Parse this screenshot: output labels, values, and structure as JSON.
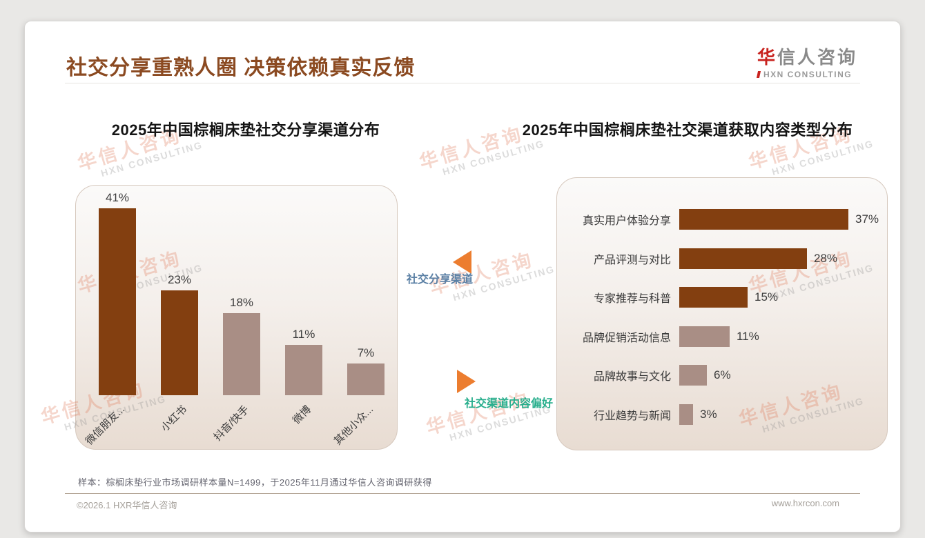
{
  "header": {
    "title": "社交分享重熟人圈 决策依赖真实反馈",
    "logo": {
      "brand_red": "华",
      "brand_rest": "信人咨询",
      "subtitle": "HXN CONSULTING"
    }
  },
  "watermark": {
    "line1": "华信人咨询",
    "line2": "HXN CONSULTING"
  },
  "annotations": {
    "left_chart_label": "社交分享渠道",
    "right_chart_label": "社交渠道内容偏好",
    "arrow_color": "#EC7D2F",
    "left_label_color": "#5B80A5",
    "right_label_color": "#27AE8C"
  },
  "colors": {
    "title_brown": "#8B4A21",
    "dark_bar": "#833F10",
    "light_bar": "#A98E85",
    "logo_red": "#C8221E"
  },
  "footnote": "样本：棕榈床垫行业市场调研样本量N=1499，于2025年11月通过华信人咨询调研获得",
  "footer": {
    "copyright": "©2026.1 HXR华信人咨询",
    "website": "www.hxrcon.com"
  },
  "chart_data": [
    {
      "type": "bar",
      "orientation": "vertical",
      "title": "2025年中国棕榈床垫社交分享渠道分布",
      "categories": [
        "微信朋友...",
        "小红书",
        "抖音/快手",
        "微博",
        "其他小众..."
      ],
      "values": [
        41,
        23,
        18,
        11,
        7
      ],
      "value_labels": [
        "41%",
        "23%",
        "18%",
        "11%",
        "7%"
      ],
      "unit": "%",
      "bar_colors": [
        "#833F10",
        "#833F10",
        "#A98E85",
        "#A98E85",
        "#A98E85"
      ],
      "ylim": [
        0,
        45
      ],
      "grid": false,
      "legend": "none"
    },
    {
      "type": "bar",
      "orientation": "horizontal",
      "title": "2025年中国棕榈床垫社交渠道获取内容类型分布",
      "categories": [
        "真实用户体验分享",
        "产品评测与对比",
        "专家推荐与科普",
        "品牌促销活动信息",
        "品牌故事与文化",
        "行业趋势与新闻"
      ],
      "values": [
        37,
        28,
        15,
        11,
        6,
        3
      ],
      "value_labels": [
        "37%",
        "28%",
        "15%",
        "11%",
        "6%",
        "3%"
      ],
      "unit": "%",
      "bar_colors": [
        "#833F10",
        "#833F10",
        "#833F10",
        "#A98E85",
        "#A98E85",
        "#A98E85"
      ],
      "xlim": [
        0,
        40
      ],
      "grid": false,
      "legend": "none"
    }
  ]
}
